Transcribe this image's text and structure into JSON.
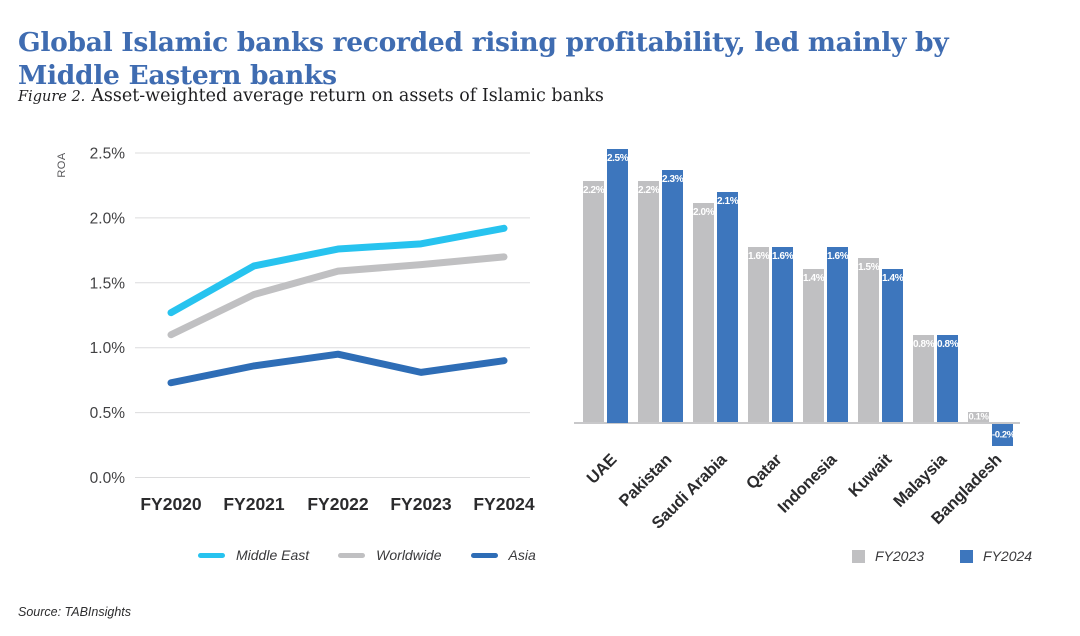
{
  "header": {
    "title_line1": "Global Islamic banks recorded rising profitability, led mainly by",
    "title_line2": "Middle Eastern banks",
    "title_color": "#3f6cb1",
    "figure_label": "Figure 2.",
    "figure_caption": "Asset-weighted average return on assets of Islamic banks"
  },
  "source": "Source: TABInsights",
  "chart_data": [
    {
      "type": "line",
      "ylabel": "ROA",
      "x": [
        "FY2020",
        "FY2021",
        "FY2022",
        "FY2023",
        "FY2024"
      ],
      "y_ticks": [
        {
          "value": 0.0,
          "label": "0.0%"
        },
        {
          "value": 0.5,
          "label": "0.5%"
        },
        {
          "value": 1.0,
          "label": "1.0%"
        },
        {
          "value": 1.5,
          "label": "1.5%"
        },
        {
          "value": 2.0,
          "label": "2.0%"
        },
        {
          "value": 2.5,
          "label": "2.5%"
        }
      ],
      "ylim": [
        0,
        2.5
      ],
      "grid": true,
      "legend_position": "bottom",
      "series": [
        {
          "name": "Middle East",
          "color": "#27c3ef",
          "values": [
            1.27,
            1.63,
            1.76,
            1.8,
            1.92
          ]
        },
        {
          "name": "Worldwide",
          "color": "#c0c0c2",
          "values": [
            1.1,
            1.41,
            1.59,
            1.64,
            1.7
          ]
        },
        {
          "name": "Asia",
          "color": "#2e6db6",
          "values": [
            0.73,
            0.86,
            0.95,
            0.81,
            0.9
          ]
        }
      ]
    },
    {
      "type": "bar",
      "categories": [
        "UAE",
        "Pakistan",
        "Saudi Arabia",
        "Qatar",
        "Indonesia",
        "Kuwait",
        "Malaysia",
        "Bangladesh"
      ],
      "ylim": [
        -0.3,
        2.6
      ],
      "legend_position": "bottom-right",
      "series": [
        {
          "name": "FY2023",
          "color": "#c0c0c2",
          "values": [
            2.2,
            2.2,
            2.0,
            1.6,
            1.4,
            1.5,
            0.8,
            0.1
          ],
          "labels": [
            "2.2%",
            "2.2%",
            "2.0%",
            "1.6%",
            "1.4%",
            "1.5%",
            "0.8%",
            "0.1%"
          ]
        },
        {
          "name": "FY2024",
          "color": "#3d76bd",
          "values": [
            2.5,
            2.3,
            2.1,
            1.6,
            1.6,
            1.4,
            0.8,
            -0.2
          ],
          "labels": [
            "2.5%",
            "2.3%",
            "2.1%",
            "1.6%",
            "1.6%",
            "1.4%",
            "0.8%",
            "-0.2%"
          ]
        }
      ]
    }
  ]
}
